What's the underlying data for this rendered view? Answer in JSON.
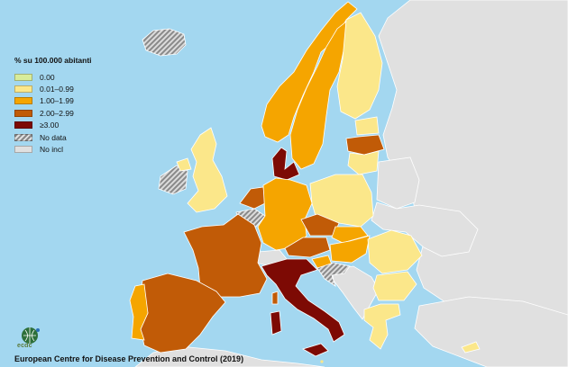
{
  "legend": {
    "title": "% su 100.000 abitanti",
    "items": [
      {
        "label": "0.00",
        "color": "#d8ec9a"
      },
      {
        "label": "0.01–0.99",
        "color": "#fbe78a"
      },
      {
        "label": "1.00–1.99",
        "color": "#f5a500"
      },
      {
        "label": "2.00–2.99",
        "color": "#c15b07"
      },
      {
        "label": "≥3.00",
        "color": "#7d0a04"
      },
      {
        "label": "No data",
        "color": "hatch"
      },
      {
        "label": "No  incl",
        "color": "#e0e0e0"
      }
    ]
  },
  "colors": {
    "sea": "#a3d7f0",
    "non_included": "#e0e0e0",
    "border": "#ffffff"
  },
  "logo": {
    "text": "ecdc",
    "icon": "ecdc-globe-logo"
  },
  "footer": {
    "source": "European Centre for Disease Prevention and Control (2019)"
  }
}
